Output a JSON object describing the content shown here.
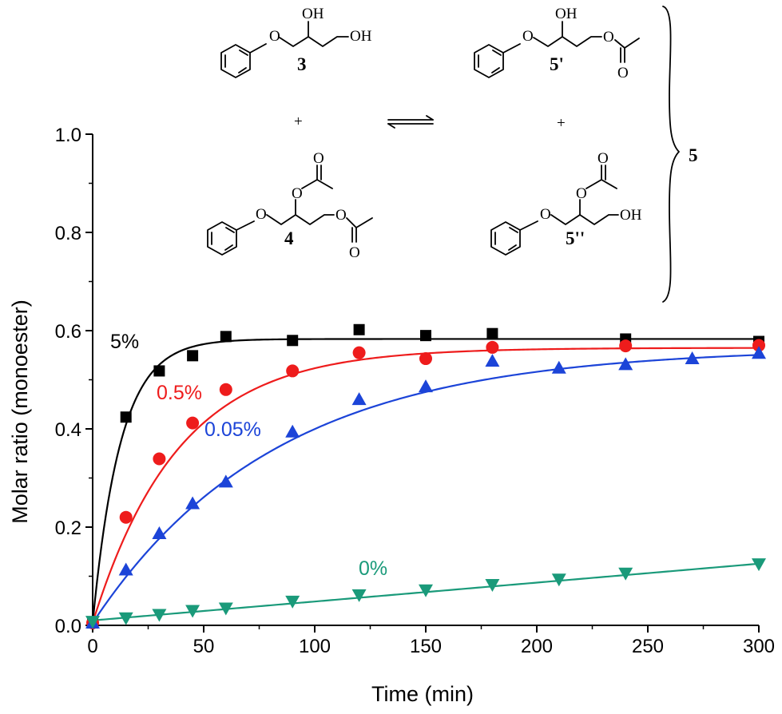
{
  "chart_data": {
    "type": "scatter",
    "xlabel": "Time (min)",
    "ylabel": "Molar ratio (monoester)",
    "xlim": [
      0,
      300
    ],
    "ylim": [
      0,
      1.0
    ],
    "x_ticks": [
      "0",
      "50",
      "100",
      "150",
      "200",
      "250",
      "300"
    ],
    "y_ticks": [
      "0.0",
      "0.2",
      "0.4",
      "0.6",
      "0.8",
      "1.0"
    ],
    "grid": false,
    "legend": "none",
    "series": [
      {
        "name": "5%",
        "color": "#000000",
        "marker": "square",
        "fit": {
          "model": "first-order",
          "plateau": 0.583,
          "k": 0.08
        },
        "x": [
          0,
          15,
          30,
          45,
          60,
          90,
          120,
          150,
          180,
          240,
          300
        ],
        "y": [
          0.005,
          0.424,
          0.518,
          0.549,
          0.588,
          0.58,
          0.602,
          0.59,
          0.594,
          0.583,
          0.578
        ]
      },
      {
        "name": "0.5%",
        "color": "#ee1c1c",
        "marker": "circle",
        "fit": {
          "model": "first-order",
          "plateau": 0.565,
          "k": 0.026
        },
        "x": [
          0,
          15,
          30,
          45,
          60,
          90,
          120,
          150,
          180,
          240,
          300
        ],
        "y": [
          0.005,
          0.22,
          0.339,
          0.412,
          0.48,
          0.518,
          0.555,
          0.543,
          0.566,
          0.569,
          0.57
        ]
      },
      {
        "name": "0.05%",
        "color": "#1c44d8",
        "marker": "triangle-up",
        "fit": {
          "model": "first-order",
          "plateau": 0.565,
          "k": 0.0122
        },
        "x": [
          0,
          15,
          30,
          45,
          60,
          90,
          120,
          150,
          180,
          210,
          240,
          270,
          300
        ],
        "y": [
          0.005,
          0.113,
          0.187,
          0.248,
          0.292,
          0.394,
          0.46,
          0.486,
          0.538,
          0.524,
          0.531,
          0.543,
          0.554
        ]
      },
      {
        "name": "0%",
        "color": "#1a9a7a",
        "marker": "triangle-down",
        "fit": {
          "model": "linear",
          "intercept": 0.01,
          "slope": 0.000385
        },
        "x": [
          0,
          15,
          30,
          45,
          60,
          90,
          120,
          150,
          180,
          210,
          240,
          300
        ],
        "y": [
          0.008,
          0.015,
          0.022,
          0.03,
          0.035,
          0.049,
          0.062,
          0.072,
          0.083,
          0.094,
          0.106,
          0.125
        ]
      }
    ]
  },
  "scheme": {
    "compound_3": "3",
    "compound_4": "4",
    "compound_5p": "5'",
    "compound_5pp": "5''",
    "product_5": "5",
    "plus": "+",
    "oxygen": "O",
    "hydroxyl": "OH"
  }
}
